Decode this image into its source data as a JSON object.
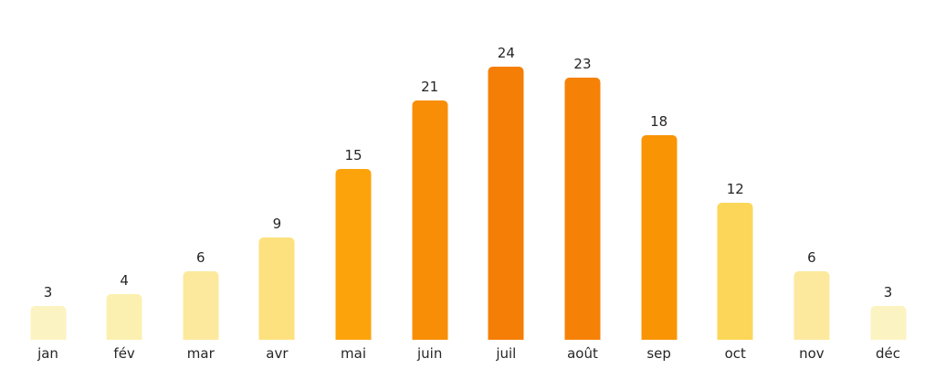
{
  "chart_data": {
    "type": "bar",
    "title": "",
    "xlabel": "",
    "ylabel": "",
    "categories": [
      "jan",
      "fév",
      "mar",
      "avr",
      "mai",
      "juin",
      "juil",
      "août",
      "sep",
      "oct",
      "nov",
      "déc"
    ],
    "values": [
      3,
      4,
      6,
      9,
      15,
      21,
      24,
      23,
      18,
      12,
      6,
      3
    ],
    "bar_colors": [
      "#FCF3C2",
      "#FCF0B0",
      "#FDE99D",
      "#FDE17F",
      "#FCA30C",
      "#F88E06",
      "#F57E06",
      "#F68107",
      "#F99405",
      "#FCD658",
      "#FDE99D",
      "#FCF3C2"
    ],
    "value_labels_shown": true,
    "value_label_color": "#262626",
    "tick_label_color": "#262626",
    "background_color": "#ffffff",
    "ylim": [
      0,
      26
    ],
    "grid": false,
    "legend": "none",
    "axes_shown": false
  }
}
